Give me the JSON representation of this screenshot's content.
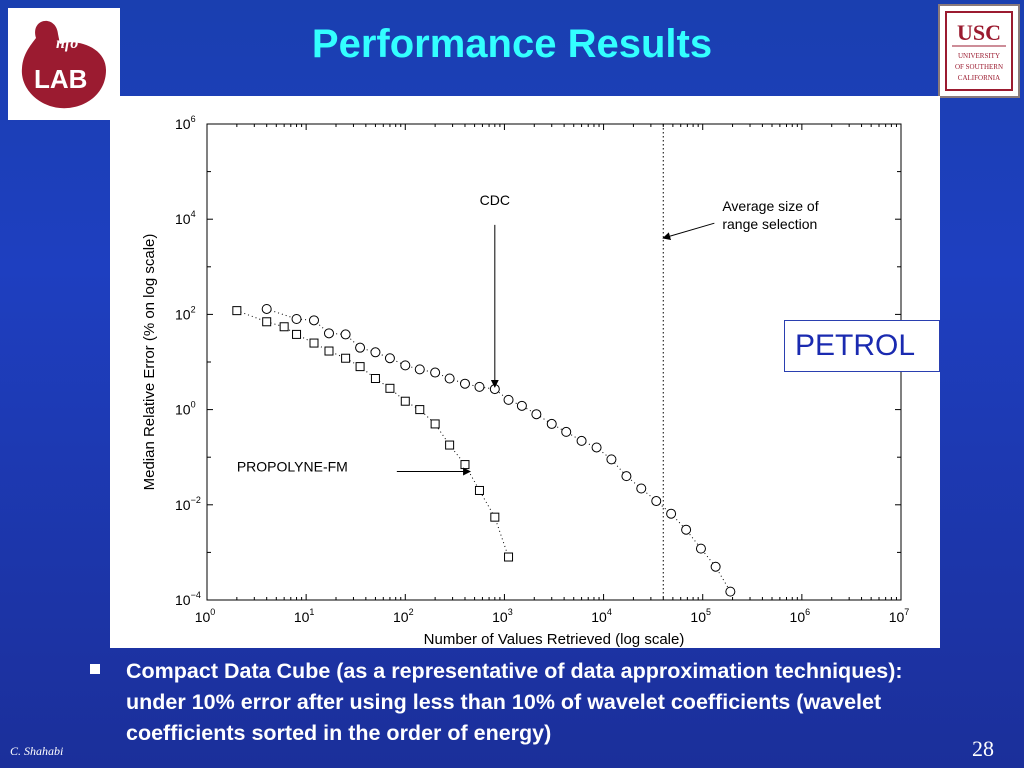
{
  "slide": {
    "title": "Performance Results",
    "bullet": "Compact Data Cube (as a representative of data approximation techniques): under 10% error after using less than 10% of wavelet coefficients (wavelet coefficients sorted in the order of energy)",
    "author": "C. Shahabi",
    "page_number": "28",
    "box_label": "PETROL",
    "logo_left": {
      "text_main": "LAB",
      "text_small": "nfo",
      "color": "#9b1b30"
    },
    "logo_right": {
      "text_main": "USC",
      "lines": [
        "UNIVERSITY",
        "OF SOUTHERN",
        "CALIFORNIA"
      ],
      "color": "#9b1b30"
    },
    "colors": {
      "background": "#1e3fc0",
      "title": "#33ffff",
      "text": "#ffffff"
    }
  },
  "chart_data": {
    "type": "scatter",
    "xlabel": "Number of Values Retrieved (log scale)",
    "ylabel": "Median Relative Error (% on log scale)",
    "xscale": "log",
    "yscale": "log",
    "xlim": [
      1,
      10000000
    ],
    "ylim": [
      0.0001,
      1000000
    ],
    "x_ticks": [
      {
        "base": "10",
        "exp": "0"
      },
      {
        "base": "10",
        "exp": "1"
      },
      {
        "base": "10",
        "exp": "2"
      },
      {
        "base": "10",
        "exp": "3"
      },
      {
        "base": "10",
        "exp": "4"
      },
      {
        "base": "10",
        "exp": "5"
      },
      {
        "base": "10",
        "exp": "6"
      },
      {
        "base": "10",
        "exp": "7"
      }
    ],
    "y_ticks": [
      {
        "base": "10",
        "exp": "−4"
      },
      {
        "base": "10",
        "exp": "−2"
      },
      {
        "base": "10",
        "exp": "0"
      },
      {
        "base": "10",
        "exp": "2"
      },
      {
        "base": "10",
        "exp": "4"
      },
      {
        "base": "10",
        "exp": "6"
      }
    ],
    "grid": false,
    "series": [
      {
        "name": "CDC",
        "marker": "circle",
        "x": [
          4,
          8,
          12,
          17,
          25,
          35,
          50,
          70,
          100,
          140,
          200,
          280,
          400,
          560,
          800,
          1100,
          1500,
          2100,
          3000,
          4200,
          6000,
          8500,
          12000,
          17000,
          24000,
          34000,
          48000,
          68000,
          96000,
          135000,
          190000
        ],
        "y": [
          130,
          80,
          75,
          40,
          38,
          20,
          16,
          12,
          8.5,
          7,
          6,
          4.5,
          3.5,
          3,
          2.7,
          1.6,
          1.2,
          0.8,
          0.5,
          0.34,
          0.22,
          0.16,
          0.09,
          0.04,
          0.022,
          0.012,
          0.0065,
          0.003,
          0.0012,
          0.0005,
          0.00015
        ]
      },
      {
        "name": "PROPOLYNE-FM",
        "marker": "square",
        "x": [
          2,
          4,
          6,
          8,
          12,
          17,
          25,
          35,
          50,
          70,
          100,
          140,
          200,
          280,
          400,
          560,
          800,
          1100
        ],
        "y": [
          120,
          70,
          55,
          38,
          25,
          17,
          12,
          8,
          4.5,
          2.8,
          1.5,
          1,
          0.5,
          0.18,
          0.07,
          0.02,
          0.0055,
          0.0008
        ]
      }
    ],
    "annotations": [
      {
        "text": "CDC",
        "x": 800,
        "y": 15000,
        "arrow_to": {
          "x": 800,
          "y": 3
        }
      },
      {
        "text": "PROPOLYNE-FM",
        "x": 2,
        "y": 0.05,
        "arrow_to": {
          "x": 450,
          "y": 0.05
        }
      },
      {
        "text": "Average size of\nrange selection",
        "x": 190000,
        "y": 10000,
        "arrow_to": {
          "x": 40000,
          "y": 4000
        }
      }
    ],
    "vertical_line": {
      "x": 40000,
      "style": "dotted"
    }
  }
}
